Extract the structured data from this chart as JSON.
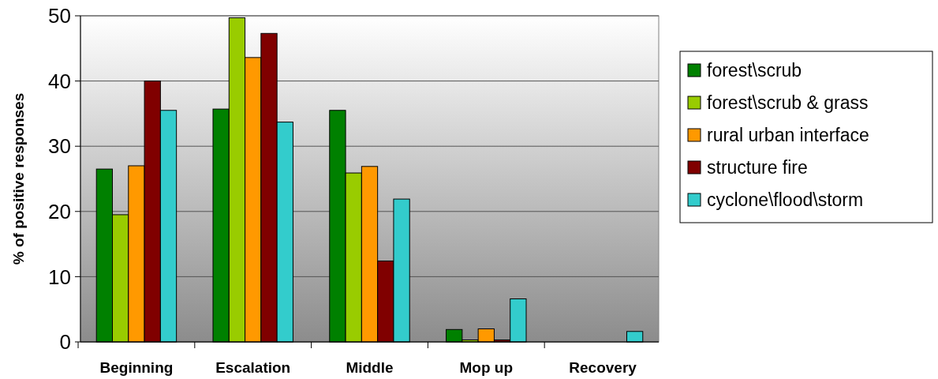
{
  "chart_data": {
    "type": "bar",
    "ylabel": "% of positive responses",
    "categories": [
      "Beginning",
      "Escalation",
      "Middle",
      "Mop up",
      "Recovery"
    ],
    "series": [
      {
        "name": "forest\\scrub",
        "color": "#008000",
        "values": [
          26.5,
          35.7,
          35.5,
          1.9,
          0
        ]
      },
      {
        "name": "forest\\scrub & grass",
        "color": "#99cc00",
        "values": [
          19.5,
          49.7,
          25.9,
          0.3,
          0
        ]
      },
      {
        "name": "rural urban interface",
        "color": "#ff9900",
        "values": [
          27,
          43.6,
          26.9,
          2,
          0
        ]
      },
      {
        "name": "structure fire",
        "color": "#800000",
        "values": [
          40,
          47.3,
          12.4,
          0.3,
          0
        ]
      },
      {
        "name": "cyclone\\flood\\storm",
        "color": "#33cccc",
        "values": [
          35.5,
          33.7,
          21.9,
          6.6,
          1.6
        ]
      }
    ],
    "ylim": [
      0,
      50
    ],
    "yticks": [
      0,
      10,
      20,
      30,
      40,
      50
    ],
    "grid": "y",
    "legend": "right"
  }
}
